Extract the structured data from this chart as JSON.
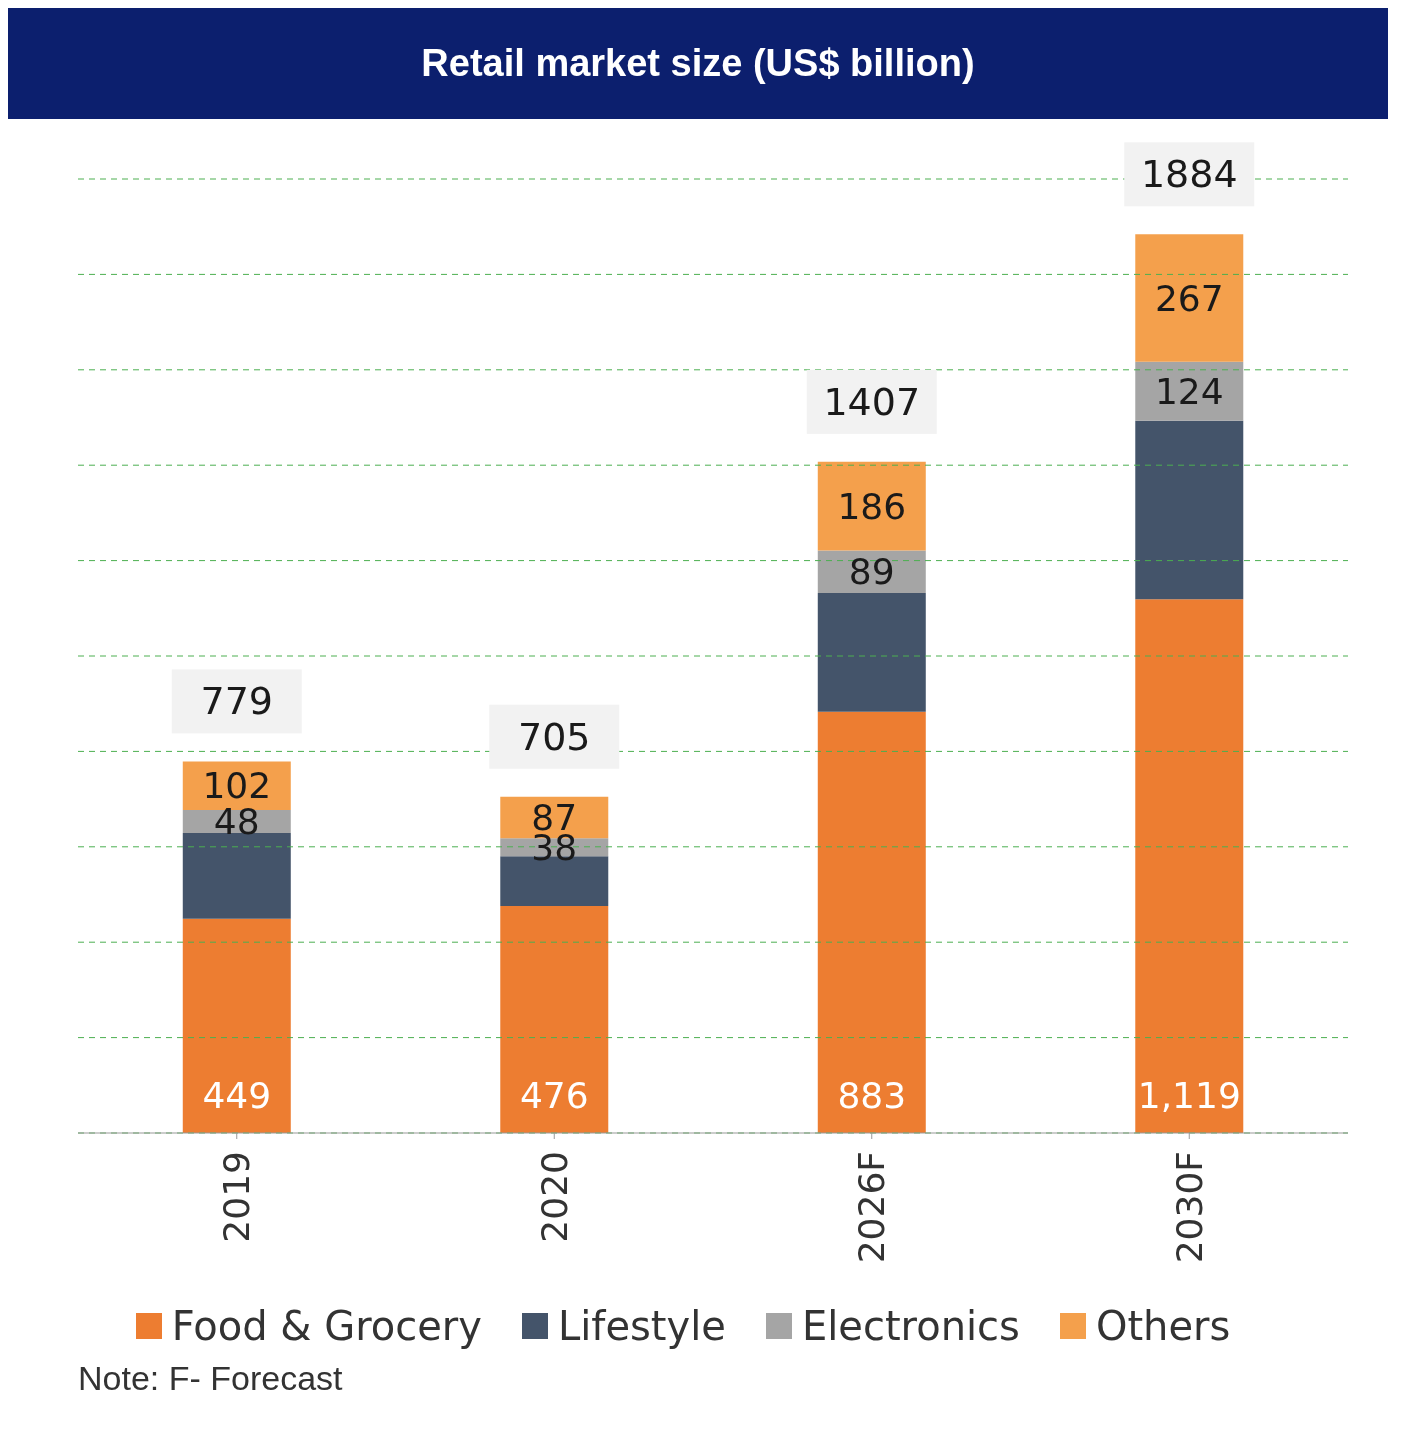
{
  "chart_data": {
    "type": "bar",
    "title": "Retail market size (US$ billion)",
    "categories": [
      "2019",
      "2020",
      "2026F",
      "2030F"
    ],
    "stacked": true,
    "series": [
      {
        "name": "Food & Grocery",
        "color": "#ed7d31",
        "values": [
          449,
          476,
          883,
          1119
        ],
        "value_labels": [
          "449",
          "476",
          "883",
          "1,119"
        ]
      },
      {
        "name": "Lifestyle",
        "color": "#44546a",
        "values": [
          180,
          104,
          249,
          374
        ]
      },
      {
        "name": "Electronics",
        "color": "#a5a5a5",
        "values": [
          48,
          38,
          89,
          124
        ],
        "value_labels": [
          "48",
          "38",
          "89",
          "124"
        ]
      },
      {
        "name": "Others",
        "color": "#f4a04c",
        "values": [
          102,
          87,
          186,
          267
        ],
        "value_labels": [
          "102",
          "87",
          "186",
          "267"
        ]
      }
    ],
    "totals": [
      "779",
      "705",
      "1407",
      "1884"
    ],
    "ylim": [
      0,
      2000
    ],
    "yticks": [
      {
        "value": 0,
        "label": null
      },
      {
        "value": 200,
        "label": null
      },
      {
        "value": 400,
        "label": null
      },
      {
        "value": 600,
        "label": null
      },
      {
        "value": 800,
        "label": null
      },
      {
        "value": 1000,
        "label": null
      },
      {
        "value": 1200,
        "label": null
      },
      {
        "value": 1400,
        "label": null
      },
      {
        "value": 1600,
        "label": null
      },
      {
        "value": 1800,
        "label": null
      },
      {
        "value": 2000,
        "label": null
      }
    ],
    "tick_labels": "x",
    "grid": "y",
    "legend": "bottom",
    "annotations": [
      "Note: F- Forecast"
    ]
  }
}
